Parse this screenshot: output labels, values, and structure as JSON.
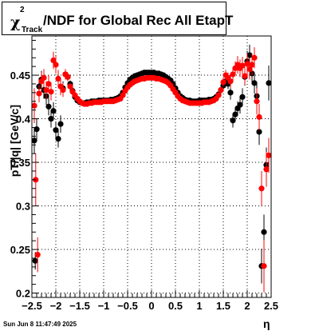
{
  "title": {
    "chi": "χ",
    "sup": "2",
    "sub": "Track",
    "main": "/NDF for Global Rec All EtapT"
  },
  "timestamp": "Sun Jun  8 11:47:49 2025",
  "colors": {
    "series_black": "#000000",
    "series_red": "#ff0000",
    "grid": "#000000"
  },
  "chart_data": {
    "type": "scatter",
    "title": "χ²_Track/NDF for Global Rec All EtapT",
    "xlabel": "η",
    "ylabel": "pT/|q| [GeV/c]",
    "xlim": [
      -2.5,
      2.5
    ],
    "ylim": [
      0.195,
      0.495
    ],
    "x_ticks": [
      -2.5,
      -2,
      -1.5,
      -1,
      -0.5,
      0,
      0.5,
      1,
      1.5,
      2,
      2.5
    ],
    "x_tick_labels": [
      "−2.5",
      "−2",
      "−1.5",
      "−1",
      "−0.5",
      "0",
      "0.5",
      "1",
      "1.5",
      "2",
      "2.5"
    ],
    "y_ticks": [
      0.2,
      0.25,
      0.3,
      0.35,
      0.4,
      0.45
    ],
    "y_tick_labels": [
      "0.2",
      "0.25",
      "0.3",
      "0.35",
      "0.4",
      "0.45"
    ],
    "grid": true,
    "legend": "none",
    "series": [
      {
        "color": "#000000",
        "points": [
          [
            -2.45,
            0.375,
            0.015
          ],
          [
            -2.43,
            0.237,
            0.01
          ],
          [
            -2.4,
            0.388,
            0.012
          ],
          [
            -2.35,
            0.437,
            0.01
          ],
          [
            -2.3,
            0.445,
            0.01
          ],
          [
            -2.25,
            0.433,
            0.01
          ],
          [
            -2.2,
            0.426,
            0.01
          ],
          [
            -2.15,
            0.414,
            0.01
          ],
          [
            -2.1,
            0.4,
            0.01
          ],
          [
            -2.05,
            0.409,
            0.01
          ],
          [
            -2.0,
            0.387,
            0.01
          ],
          [
            -1.95,
            0.377,
            0.01
          ],
          [
            -1.9,
            0.394,
            0.01
          ],
          [
            -1.85,
            0.435,
            0.008
          ],
          [
            -1.8,
            0.451,
            0.006
          ],
          [
            -1.75,
            0.448,
            0.005
          ],
          [
            -1.7,
            0.44,
            0.004
          ],
          [
            -1.65,
            0.432,
            0.004
          ],
          [
            -1.6,
            0.425,
            0.003
          ],
          [
            -1.55,
            0.421,
            0.003
          ],
          [
            -1.5,
            0.419,
            0.003
          ],
          [
            -1.45,
            0.418,
            0.003
          ],
          [
            -1.4,
            0.418,
            0.003
          ],
          [
            -1.35,
            0.419,
            0.003
          ],
          [
            -1.3,
            0.419,
            0.003
          ],
          [
            -1.25,
            0.42,
            0.003
          ],
          [
            -1.2,
            0.42,
            0.003
          ],
          [
            -1.15,
            0.42,
            0.003
          ],
          [
            -1.1,
            0.421,
            0.003
          ],
          [
            -1.05,
            0.421,
            0.003
          ],
          [
            -1.0,
            0.421,
            0.003
          ],
          [
            -0.95,
            0.421,
            0.003
          ],
          [
            -0.9,
            0.421,
            0.003
          ],
          [
            -0.85,
            0.422,
            0.003
          ],
          [
            -0.8,
            0.422,
            0.003
          ],
          [
            -0.75,
            0.423,
            0.003
          ],
          [
            -0.7,
            0.424,
            0.003
          ],
          [
            -0.65,
            0.426,
            0.003
          ],
          [
            -0.6,
            0.43,
            0.003
          ],
          [
            -0.55,
            0.436,
            0.003
          ],
          [
            -0.5,
            0.441,
            0.003
          ],
          [
            -0.45,
            0.445,
            0.003
          ],
          [
            -0.4,
            0.447,
            0.003
          ],
          [
            -0.35,
            0.449,
            0.003
          ],
          [
            -0.3,
            0.45,
            0.003
          ],
          [
            -0.25,
            0.451,
            0.003
          ],
          [
            -0.2,
            0.452,
            0.003
          ],
          [
            -0.15,
            0.453,
            0.003
          ],
          [
            -0.1,
            0.453,
            0.003
          ],
          [
            -0.05,
            0.453,
            0.003
          ],
          [
            0.0,
            0.453,
            0.003
          ],
          [
            0.05,
            0.453,
            0.003
          ],
          [
            0.1,
            0.452,
            0.003
          ],
          [
            0.15,
            0.452,
            0.003
          ],
          [
            0.2,
            0.451,
            0.003
          ],
          [
            0.25,
            0.45,
            0.003
          ],
          [
            0.3,
            0.448,
            0.003
          ],
          [
            0.35,
            0.446,
            0.003
          ],
          [
            0.4,
            0.444,
            0.003
          ],
          [
            0.45,
            0.44,
            0.003
          ],
          [
            0.5,
            0.435,
            0.003
          ],
          [
            0.55,
            0.43,
            0.003
          ],
          [
            0.6,
            0.426,
            0.003
          ],
          [
            0.65,
            0.424,
            0.003
          ],
          [
            0.7,
            0.422,
            0.003
          ],
          [
            0.75,
            0.421,
            0.003
          ],
          [
            0.8,
            0.421,
            0.003
          ],
          [
            0.85,
            0.42,
            0.003
          ],
          [
            0.9,
            0.42,
            0.003
          ],
          [
            0.95,
            0.42,
            0.003
          ],
          [
            1.0,
            0.421,
            0.003
          ],
          [
            1.05,
            0.421,
            0.003
          ],
          [
            1.1,
            0.421,
            0.003
          ],
          [
            1.15,
            0.421,
            0.003
          ],
          [
            1.2,
            0.422,
            0.003
          ],
          [
            1.25,
            0.422,
            0.003
          ],
          [
            1.3,
            0.423,
            0.003
          ],
          [
            1.35,
            0.425,
            0.003
          ],
          [
            1.4,
            0.428,
            0.003
          ],
          [
            1.45,
            0.433,
            0.004
          ],
          [
            1.5,
            0.438,
            0.004
          ],
          [
            1.55,
            0.443,
            0.005
          ],
          [
            1.6,
            0.44,
            0.006
          ],
          [
            1.65,
            0.43,
            0.008
          ],
          [
            1.7,
            0.398,
            0.008
          ],
          [
            1.75,
            0.405,
            0.008
          ],
          [
            1.8,
            0.412,
            0.008
          ],
          [
            1.85,
            0.416,
            0.01
          ],
          [
            1.9,
            0.425,
            0.01
          ],
          [
            1.95,
            0.448,
            0.01
          ],
          [
            2.0,
            0.466,
            0.012
          ],
          [
            2.05,
            0.473,
            0.012
          ],
          [
            2.1,
            0.452,
            0.012
          ],
          [
            2.15,
            0.441,
            0.012
          ],
          [
            2.2,
            0.426,
            0.015
          ],
          [
            2.25,
            0.385,
            0.015
          ],
          [
            2.3,
            0.231,
            0.02
          ],
          [
            2.35,
            0.27,
            0.02
          ],
          [
            2.4,
            0.347,
            0.02
          ],
          [
            2.45,
            0.441,
            0.02
          ]
        ]
      },
      {
        "color": "#ff0000",
        "points": [
          [
            -2.45,
            0.415,
            0.02
          ],
          [
            -2.42,
            0.33,
            0.03
          ],
          [
            -2.38,
            0.244,
            0.02
          ],
          [
            -2.35,
            0.429,
            0.01
          ],
          [
            -2.3,
            0.443,
            0.01
          ],
          [
            -2.25,
            0.447,
            0.01
          ],
          [
            -2.2,
            0.433,
            0.01
          ],
          [
            -2.15,
            0.44,
            0.01
          ],
          [
            -2.1,
            0.431,
            0.01
          ],
          [
            -2.05,
            0.467,
            0.01
          ],
          [
            -2.0,
            0.462,
            0.01
          ],
          [
            -1.95,
            0.446,
            0.01
          ],
          [
            -1.9,
            0.437,
            0.01
          ],
          [
            -1.85,
            0.433,
            0.008
          ],
          [
            -1.8,
            0.451,
            0.006
          ],
          [
            -1.75,
            0.448,
            0.005
          ],
          [
            -1.7,
            0.437,
            0.004
          ],
          [
            -1.65,
            0.431,
            0.004
          ],
          [
            -1.6,
            0.427,
            0.003
          ],
          [
            -1.55,
            0.423,
            0.003
          ],
          [
            -1.5,
            0.42,
            0.003
          ],
          [
            -1.45,
            0.418,
            0.003
          ],
          [
            -1.4,
            0.417,
            0.003
          ],
          [
            -1.35,
            0.417,
            0.003
          ],
          [
            -1.3,
            0.418,
            0.003
          ],
          [
            -1.25,
            0.418,
            0.003
          ],
          [
            -1.2,
            0.419,
            0.003
          ],
          [
            -1.15,
            0.419,
            0.003
          ],
          [
            -1.1,
            0.419,
            0.003
          ],
          [
            -1.05,
            0.419,
            0.003
          ],
          [
            -1.0,
            0.42,
            0.003
          ],
          [
            -0.95,
            0.42,
            0.003
          ],
          [
            -0.9,
            0.42,
            0.003
          ],
          [
            -0.85,
            0.42,
            0.003
          ],
          [
            -0.8,
            0.42,
            0.003
          ],
          [
            -0.75,
            0.421,
            0.003
          ],
          [
            -0.7,
            0.422,
            0.003
          ],
          [
            -0.65,
            0.423,
            0.003
          ],
          [
            -0.6,
            0.427,
            0.003
          ],
          [
            -0.55,
            0.432,
            0.003
          ],
          [
            -0.5,
            0.436,
            0.003
          ],
          [
            -0.45,
            0.439,
            0.003
          ],
          [
            -0.4,
            0.441,
            0.003
          ],
          [
            -0.35,
            0.443,
            0.003
          ],
          [
            -0.3,
            0.444,
            0.003
          ],
          [
            -0.25,
            0.445,
            0.003
          ],
          [
            -0.2,
            0.446,
            0.003
          ],
          [
            -0.15,
            0.446,
            0.003
          ],
          [
            -0.1,
            0.447,
            0.003
          ],
          [
            -0.05,
            0.447,
            0.003
          ],
          [
            0.0,
            0.447,
            0.003
          ],
          [
            0.05,
            0.447,
            0.003
          ],
          [
            0.1,
            0.446,
            0.003
          ],
          [
            0.15,
            0.446,
            0.003
          ],
          [
            0.2,
            0.445,
            0.003
          ],
          [
            0.25,
            0.444,
            0.003
          ],
          [
            0.3,
            0.443,
            0.003
          ],
          [
            0.35,
            0.441,
            0.003
          ],
          [
            0.4,
            0.438,
            0.003
          ],
          [
            0.45,
            0.434,
            0.003
          ],
          [
            0.5,
            0.43,
            0.003
          ],
          [
            0.55,
            0.426,
            0.003
          ],
          [
            0.6,
            0.423,
            0.003
          ],
          [
            0.65,
            0.421,
            0.003
          ],
          [
            0.7,
            0.42,
            0.003
          ],
          [
            0.75,
            0.419,
            0.003
          ],
          [
            0.8,
            0.418,
            0.003
          ],
          [
            0.85,
            0.418,
            0.003
          ],
          [
            0.9,
            0.418,
            0.003
          ],
          [
            0.95,
            0.418,
            0.003
          ],
          [
            1.0,
            0.418,
            0.003
          ],
          [
            1.05,
            0.418,
            0.003
          ],
          [
            1.1,
            0.419,
            0.003
          ],
          [
            1.15,
            0.419,
            0.003
          ],
          [
            1.2,
            0.419,
            0.003
          ],
          [
            1.25,
            0.42,
            0.003
          ],
          [
            1.3,
            0.421,
            0.003
          ],
          [
            1.35,
            0.423,
            0.003
          ],
          [
            1.4,
            0.427,
            0.003
          ],
          [
            1.45,
            0.433,
            0.004
          ],
          [
            1.5,
            0.442,
            0.005
          ],
          [
            1.55,
            0.45,
            0.006
          ],
          [
            1.6,
            0.447,
            0.006
          ],
          [
            1.65,
            0.443,
            0.008
          ],
          [
            1.7,
            0.451,
            0.008
          ],
          [
            1.75,
            0.458,
            0.008
          ],
          [
            1.8,
            0.462,
            0.01
          ],
          [
            1.85,
            0.458,
            0.01
          ],
          [
            1.9,
            0.461,
            0.01
          ],
          [
            1.95,
            0.449,
            0.01
          ],
          [
            2.0,
            0.463,
            0.012
          ],
          [
            2.05,
            0.457,
            0.012
          ],
          [
            2.1,
            0.462,
            0.012
          ],
          [
            2.15,
            0.47,
            0.012
          ],
          [
            2.2,
            0.42,
            0.015
          ],
          [
            2.25,
            0.402,
            0.015
          ],
          [
            2.3,
            0.32,
            0.02
          ],
          [
            2.35,
            0.231,
            0.03
          ],
          [
            2.4,
            0.342,
            0.02
          ],
          [
            2.45,
            0.358,
            0.02
          ]
        ]
      }
    ]
  }
}
